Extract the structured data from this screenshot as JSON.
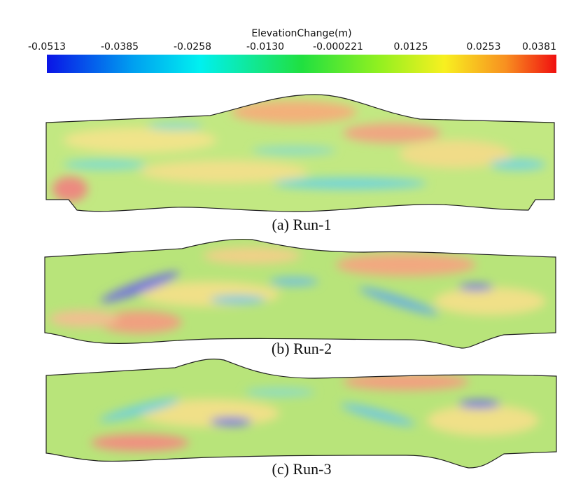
{
  "colorbar": {
    "title": "ElevationChange(m)",
    "tick_labels": [
      "-0.0513",
      "-0.0385",
      "-0.0258",
      "-0.0130",
      "-0.000221",
      "0.0125",
      "0.0253",
      "0.0381"
    ]
  },
  "panels": [
    {
      "caption": "(a) Run-1"
    },
    {
      "caption": "(b) Run-2"
    },
    {
      "caption": "(c) Run-3"
    }
  ]
}
